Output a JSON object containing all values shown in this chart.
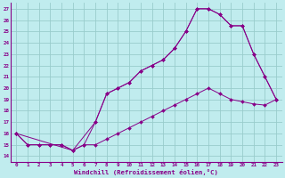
{
  "xlabel": "Windchill (Refroidissement éolien,°C)",
  "bg_color": "#c0ecee",
  "grid_color": "#99cccc",
  "line_color": "#880088",
  "x_ticks": [
    0,
    1,
    2,
    3,
    4,
    5,
    6,
    7,
    8,
    9,
    10,
    11,
    12,
    13,
    14,
    15,
    16,
    17,
    18,
    19,
    20,
    21,
    22,
    23
  ],
  "y_ticks": [
    14,
    15,
    16,
    17,
    18,
    19,
    20,
    21,
    22,
    23,
    24,
    25,
    26,
    27
  ],
  "xlim": [
    -0.5,
    23.5
  ],
  "ylim": [
    13.5,
    27.5
  ],
  "series1_x": [
    0,
    1,
    2,
    3,
    4,
    5,
    6,
    7,
    8,
    9,
    10,
    11,
    12,
    13,
    14,
    15,
    16,
    17,
    18,
    19,
    20,
    21,
    22,
    23
  ],
  "series1_y": [
    16.0,
    15.0,
    15.0,
    15.0,
    15.0,
    14.5,
    15.0,
    17.0,
    19.5,
    20.0,
    20.5,
    21.5,
    22.0,
    22.5,
    23.5,
    25.0,
    27.0,
    27.0,
    26.5,
    25.5,
    25.5,
    23.0,
    21.0,
    19.0
  ],
  "series2_x": [
    0,
    1,
    2,
    3,
    4,
    5,
    6,
    7,
    8,
    9,
    10,
    11,
    12,
    13,
    14,
    15,
    16,
    17,
    18,
    19,
    20,
    21,
    22,
    23
  ],
  "series2_y": [
    16.0,
    15.0,
    15.0,
    15.0,
    15.0,
    14.5,
    15.0,
    15.0,
    15.5,
    16.0,
    16.5,
    17.0,
    17.5,
    18.0,
    18.5,
    19.0,
    19.5,
    20.0,
    19.5,
    19.0,
    18.8,
    18.6,
    18.5,
    19.0
  ],
  "series3_x": [
    0,
    5,
    7,
    8,
    9,
    10,
    11,
    12,
    13,
    14,
    15,
    16,
    17,
    18,
    19,
    20,
    21,
    22,
    23
  ],
  "series3_y": [
    16.0,
    14.5,
    17.0,
    19.5,
    20.0,
    20.5,
    21.5,
    22.0,
    22.5,
    23.5,
    25.0,
    27.0,
    27.0,
    26.5,
    25.5,
    25.5,
    23.0,
    21.0,
    19.0
  ]
}
